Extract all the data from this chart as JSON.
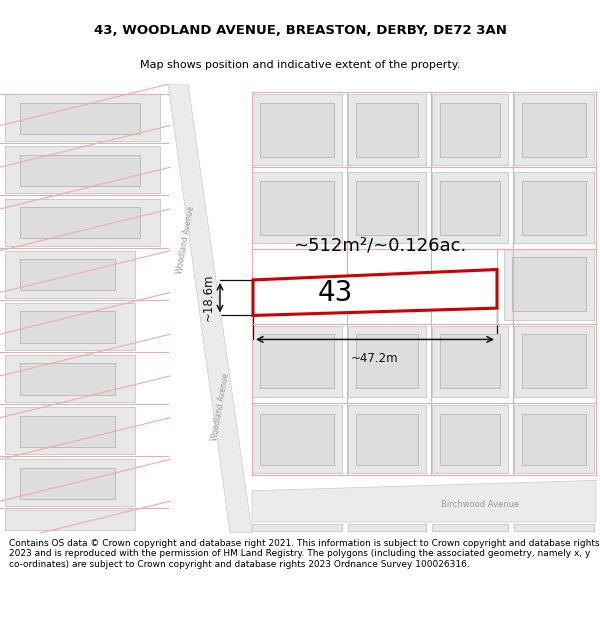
{
  "title_line1": "43, WOODLAND AVENUE, BREASTON, DERBY, DE72 3AN",
  "title_line2": "Map shows position and indicative extent of the property.",
  "footer_text": "Contains OS data © Crown copyright and database right 2021. This information is subject to Crown copyright and database rights 2023 and is reproduced with the permission of HM Land Registry. The polygons (including the associated geometry, namely x, y co-ordinates) are subject to Crown copyright and database rights 2023 Ordnance Survey 100026316.",
  "building_fill": "#e8e8e8",
  "building_edge": "#cccccc",
  "plot_line_color": "#cc0000",
  "street_line_color": "#f0aaaa",
  "road_fill": "#f0f0f0",
  "dim_color": "#111111",
  "area_text": "~512m²/~0.126ac.",
  "width_text": "~47.2m",
  "height_text": "~18.6m",
  "number_text": "43",
  "street1_text": "Woodland Avenue",
  "street2_text": "Birchwood Avenue"
}
